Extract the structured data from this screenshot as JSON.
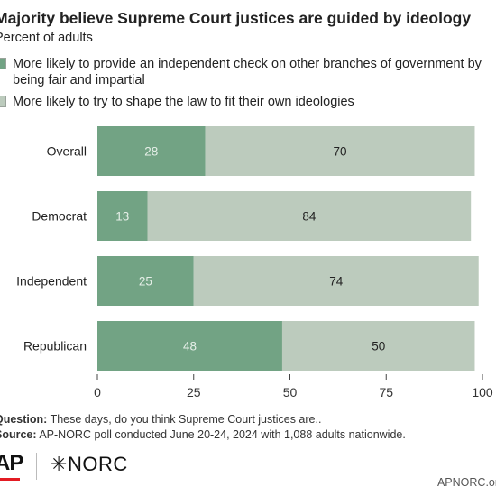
{
  "chart_data": {
    "type": "bar",
    "orientation": "horizontal",
    "stacked": true,
    "title": "Majority believe Supreme Court justices are guided by ideology",
    "subtitle": "Percent of adults",
    "categories": [
      "Overall",
      "Democrat",
      "Independent",
      "Republican"
    ],
    "series": [
      {
        "name": "More likely to provide an independent check on other branches of government by being fair and impartial",
        "values": [
          28,
          13,
          25,
          48
        ],
        "color": "#72a384"
      },
      {
        "name": "More likely to try to shape the law to fit their own ideologies",
        "values": [
          70,
          84,
          74,
          50
        ],
        "color": "#bccbbd"
      }
    ],
    "xticks": [
      "0",
      "25",
      "50",
      "75",
      "100"
    ],
    "xlim": [
      0,
      100
    ],
    "legend": "top",
    "grid": false
  },
  "notes": {
    "question_label": "Question:",
    "question_text": " These days, do you think Supreme Court justices are..",
    "source_label": "Source:",
    "source_text": " AP-NORC poll conducted June 20-24, 2024 with 1,088 adults nationwide."
  },
  "branding": {
    "ap_logo": "AP",
    "norc_logo": "NORC",
    "norc_mark": "✳",
    "site": "APNORC.org"
  },
  "colors": {
    "label_on_dark": "#e6efe8",
    "label_on_light": "#222222",
    "axis": "#444444"
  }
}
